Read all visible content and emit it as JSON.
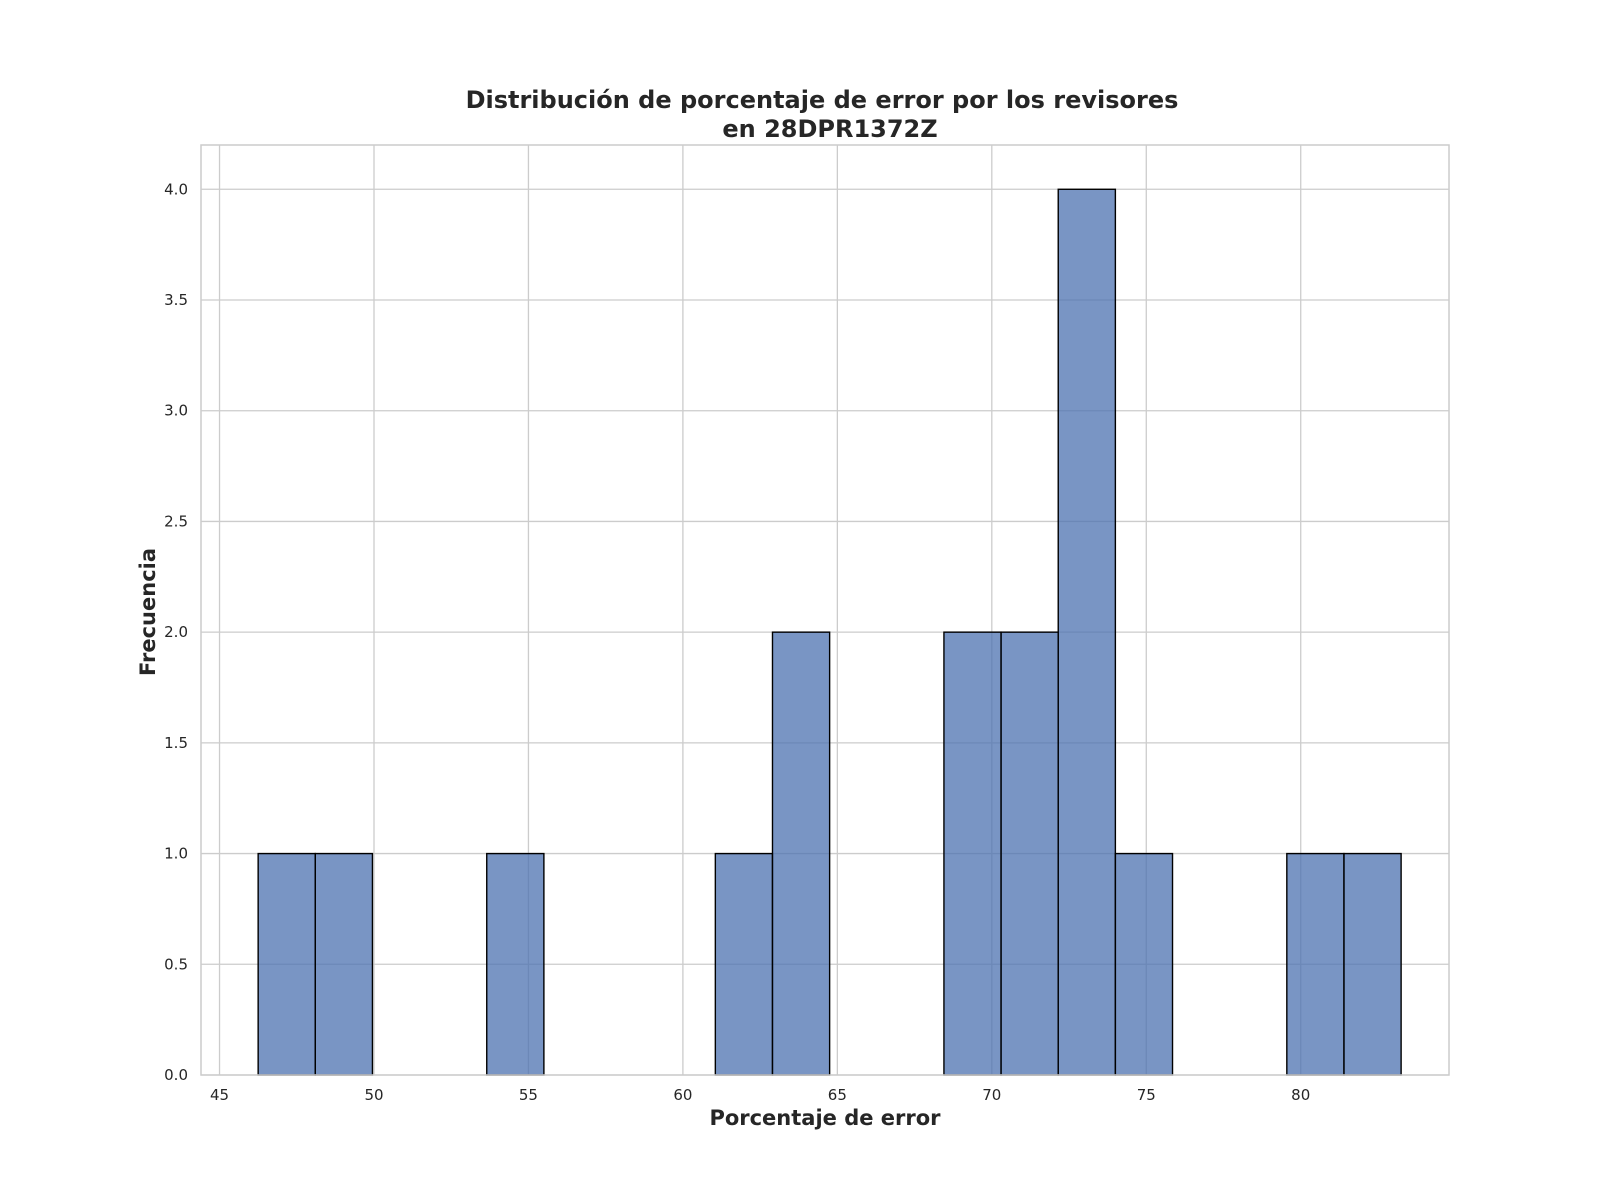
{
  "chart_data": {
    "type": "bar",
    "title_lines": [
      "Distribución de porcentaje de error por los revisores",
      "en 28DPR1372Z"
    ],
    "xlabel": "Porcentaje de error",
    "ylabel": "Frecuencia",
    "xlim": [
      44.4,
      84.8
    ],
    "ylim": [
      0,
      4.2
    ],
    "x_ticks": [
      "45",
      "50",
      "55",
      "60",
      "65",
      "70",
      "75",
      "80"
    ],
    "y_ticks": [
      "0.0",
      "0.5",
      "1.0",
      "1.5",
      "2.0",
      "2.5",
      "3.0",
      "3.5",
      "4.0"
    ],
    "grid": true,
    "bar_color": "#4c72b0",
    "bins": [
      {
        "start": 46.25,
        "end": 48.1,
        "count": 1
      },
      {
        "start": 48.1,
        "end": 49.95,
        "count": 1
      },
      {
        "start": 49.95,
        "end": 51.8,
        "count": 0
      },
      {
        "start": 51.8,
        "end": 53.65,
        "count": 0
      },
      {
        "start": 53.65,
        "end": 55.5,
        "count": 1
      },
      {
        "start": 55.5,
        "end": 57.35,
        "count": 0
      },
      {
        "start": 57.35,
        "end": 59.2,
        "count": 0
      },
      {
        "start": 59.2,
        "end": 61.05,
        "count": 0
      },
      {
        "start": 61.05,
        "end": 62.9,
        "count": 1
      },
      {
        "start": 62.9,
        "end": 64.75,
        "count": 2
      },
      {
        "start": 64.75,
        "end": 66.6,
        "count": 0
      },
      {
        "start": 66.6,
        "end": 68.45,
        "count": 0
      },
      {
        "start": 68.45,
        "end": 70.3,
        "count": 2
      },
      {
        "start": 70.3,
        "end": 72.15,
        "count": 2
      },
      {
        "start": 72.15,
        "end": 74.0,
        "count": 4
      },
      {
        "start": 74.0,
        "end": 75.85,
        "count": 1
      },
      {
        "start": 75.85,
        "end": 77.7,
        "count": 0
      },
      {
        "start": 77.7,
        "end": 79.55,
        "count": 0
      },
      {
        "start": 79.55,
        "end": 81.4,
        "count": 1
      },
      {
        "start": 81.4,
        "end": 83.25,
        "count": 1
      }
    ]
  }
}
